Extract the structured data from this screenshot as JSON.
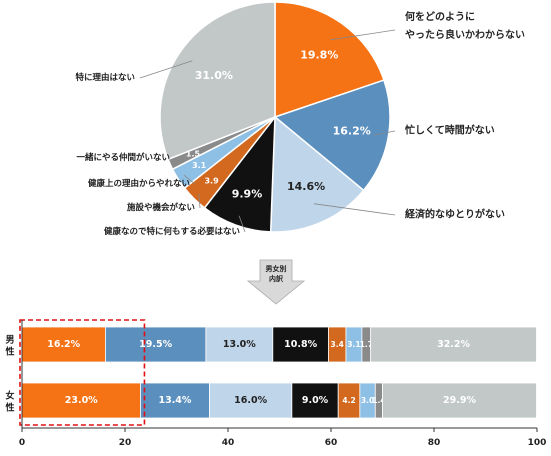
{
  "chart_data": [
    {
      "type": "pie",
      "categories": [
        "何をどのように\nやったら良いかわからない",
        "忙しくて時間がない",
        "経済的なゆとりがない",
        "健康なので特に何もする必要はない",
        "施設や機会がない",
        "健康上の理由からやれない",
        "一緒にやる仲間がいない",
        "特に理由はない"
      ],
      "values": [
        19.8,
        16.2,
        14.6,
        9.9,
        3.9,
        3.1,
        1.5,
        31.0
      ],
      "value_labels": [
        "19.8%",
        "16.2%",
        "14.6%",
        "9.9%",
        "3.9",
        "3.1",
        "1.5",
        "31.0%"
      ],
      "colors": [
        "#f57215",
        "#5b8fbe",
        "#bfd5ea",
        "#111111",
        "#d2691e",
        "#8ec0e6",
        "#8a8a8a",
        "#c2c7c8"
      ],
      "start_angle_deg": 0,
      "direction": "clockwise"
    },
    {
      "type": "bar",
      "orientation": "horizontal",
      "stacked": true,
      "categories": [
        "男性",
        "女性"
      ],
      "series": [
        {
          "values": [
            16.2,
            23.0
          ],
          "labels": [
            "16.2%",
            "23.0%"
          ],
          "color": "#f57215"
        },
        {
          "values": [
            19.5,
            13.4
          ],
          "labels": [
            "19.5%",
            "13.4%"
          ],
          "color": "#5b8fbe"
        },
        {
          "values": [
            13.0,
            16.0
          ],
          "labels": [
            "13.0%",
            "16.0%"
          ],
          "color": "#bfd5ea"
        },
        {
          "values": [
            10.8,
            9.0
          ],
          "labels": [
            "10.8%",
            "9.0%"
          ],
          "color": "#111111"
        },
        {
          "values": [
            3.4,
            4.2
          ],
          "labels": [
            "3.4",
            "4.2"
          ],
          "color": "#d2691e"
        },
        {
          "values": [
            3.1,
            3.0
          ],
          "labels": [
            "3.1",
            "3.0"
          ],
          "color": "#8ec0e6"
        },
        {
          "values": [
            1.7,
            1.4
          ],
          "labels": [
            "1.7",
            "1.4"
          ],
          "color": "#8a8a8a"
        },
        {
          "values": [
            32.2,
            29.9
          ],
          "labels": [
            "32.2%",
            "29.9%"
          ],
          "color": "#c2c7c8"
        }
      ],
      "xlim": [
        0,
        100
      ],
      "x_ticks": [
        0,
        20,
        40,
        60,
        80,
        100
      ],
      "highlight": "dashed-red box around the first segment of both rows"
    }
  ],
  "arrow_label": "男女別\n内訳"
}
